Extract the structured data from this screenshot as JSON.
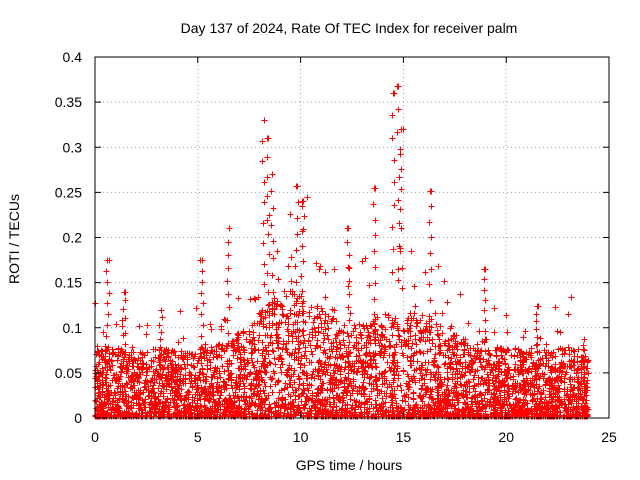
{
  "chart_data": {
    "type": "scatter",
    "title": "Day 137 of 2024, Rate Of TEC Index for receiver palm",
    "xlabel": "GPS time / hours",
    "ylabel": "ROTI / TECUs",
    "xlim": [
      0,
      25
    ],
    "ylim": [
      0,
      0.4
    ],
    "xticks": [
      0,
      5,
      10,
      15,
      20,
      25
    ],
    "yticks": [
      0,
      0.05,
      0.1,
      0.15,
      0.2,
      0.25,
      0.3,
      0.35,
      0.4
    ],
    "xtick_labels": [
      "0",
      "5",
      "10",
      "15",
      "20",
      "25"
    ],
    "ytick_labels": [
      "0",
      "0.05",
      "0.1",
      "0.15",
      "0.2",
      "0.25",
      "0.3",
      "0.35",
      "0.4"
    ],
    "grid": true,
    "marker": "+",
    "series": [
      {
        "name": "ROTI",
        "color": "#ff0000",
        "x_range": [
          0,
          24
        ],
        "typical_level": 0.03,
        "notable_points": [
          {
            "x": 0.6,
            "y": 0.175
          },
          {
            "x": 1.4,
            "y": 0.14
          },
          {
            "x": 3.2,
            "y": 0.12
          },
          {
            "x": 5.2,
            "y": 0.175
          },
          {
            "x": 6.5,
            "y": 0.21
          },
          {
            "x": 8.2,
            "y": 0.33
          },
          {
            "x": 8.4,
            "y": 0.31
          },
          {
            "x": 8.6,
            "y": 0.27
          },
          {
            "x": 9.8,
            "y": 0.257
          },
          {
            "x": 10.1,
            "y": 0.24
          },
          {
            "x": 12.3,
            "y": 0.21
          },
          {
            "x": 13.6,
            "y": 0.255
          },
          {
            "x": 14.5,
            "y": 0.36
          },
          {
            "x": 14.75,
            "y": 0.368
          },
          {
            "x": 14.9,
            "y": 0.32
          },
          {
            "x": 16.3,
            "y": 0.252
          },
          {
            "x": 18.9,
            "y": 0.165
          },
          {
            "x": 21.5,
            "y": 0.124
          },
          {
            "x": 23.8,
            "y": 0.087
          }
        ]
      }
    ]
  }
}
